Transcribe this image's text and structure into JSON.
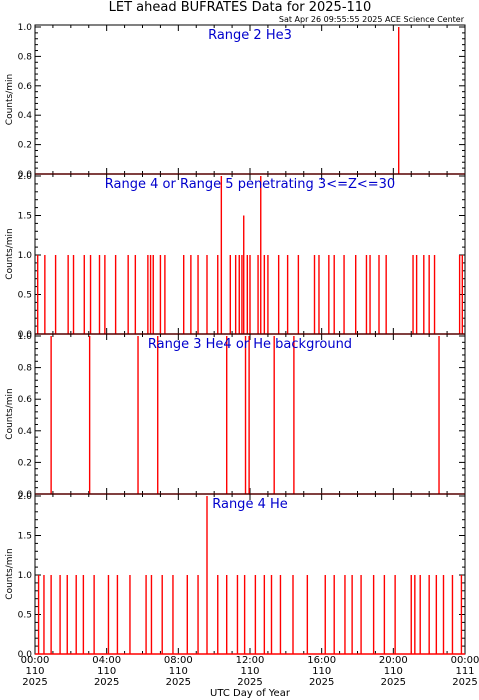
{
  "header": {
    "title": "LET ahead BUFRATES Data for 2025-110",
    "timestamp": "Sat Apr 26 09:55:55 2025 ACE Science Center"
  },
  "chart_data": {
    "type": "line",
    "xlabel": "UTC Day of Year",
    "x_ticks": [
      {
        "time": "00:00",
        "doy": "110",
        "year": "2025"
      },
      {
        "time": "04:00",
        "doy": "110",
        "year": "2025"
      },
      {
        "time": "08:00",
        "doy": "110",
        "year": "2025"
      },
      {
        "time": "12:00",
        "doy": "110",
        "year": "2025"
      },
      {
        "time": "16:00",
        "doy": "110",
        "year": "2025"
      },
      {
        "time": "20:00",
        "doy": "110",
        "year": "2025"
      },
      {
        "time": "00:00",
        "doy": "111",
        "year": "2025"
      }
    ],
    "xlim_hours": [
      0,
      24
    ],
    "colors": {
      "line": "#ff0000",
      "label": "#0000cc",
      "axis": "#000000"
    },
    "panels": [
      {
        "label": "Range 2 He3",
        "ylabel": "Counts/min",
        "ylim": [
          0,
          1.0
        ],
        "yticks": [
          "0.0",
          "0.2",
          "0.4",
          "0.6",
          "0.8",
          "1.0"
        ],
        "spikes": [
          {
            "t": 20.3,
            "v": 1
          }
        ]
      },
      {
        "label": "Range 4 or Range 5 penetrating 3<=Z<=30",
        "ylabel": "Counts/min",
        "ylim": [
          0,
          2.0
        ],
        "yticks": [
          "0.0",
          "0.5",
          "1.0",
          "1.5",
          "2.0"
        ],
        "spikes": [
          {
            "t": 0.15,
            "v": 1
          },
          {
            "t": 0.55,
            "v": 1
          },
          {
            "t": 1.15,
            "v": 1
          },
          {
            "t": 1.85,
            "v": 1
          },
          {
            "t": 2.15,
            "v": 1
          },
          {
            "t": 2.75,
            "v": 1
          },
          {
            "t": 3.1,
            "v": 1
          },
          {
            "t": 3.6,
            "v": 1
          },
          {
            "t": 3.9,
            "v": 1
          },
          {
            "t": 4.5,
            "v": 1
          },
          {
            "t": 5.2,
            "v": 1
          },
          {
            "t": 5.6,
            "v": 1
          },
          {
            "t": 6.3,
            "v": 1
          },
          {
            "t": 6.45,
            "v": 1
          },
          {
            "t": 6.6,
            "v": 1
          },
          {
            "t": 7.0,
            "v": 1
          },
          {
            "t": 7.25,
            "v": 1
          },
          {
            "t": 8.3,
            "v": 1
          },
          {
            "t": 8.7,
            "v": 1
          },
          {
            "t": 9.1,
            "v": 1
          },
          {
            "t": 9.6,
            "v": 1
          },
          {
            "t": 10.2,
            "v": 1
          },
          {
            "t": 10.4,
            "v": 2
          },
          {
            "t": 10.9,
            "v": 1
          },
          {
            "t": 11.2,
            "v": 1
          },
          {
            "t": 11.4,
            "v": 1
          },
          {
            "t": 11.55,
            "v": 1
          },
          {
            "t": 11.65,
            "v": 1.5
          },
          {
            "t": 11.85,
            "v": 1
          },
          {
            "t": 12.0,
            "v": 1
          },
          {
            "t": 12.45,
            "v": 1
          },
          {
            "t": 12.6,
            "v": 2
          },
          {
            "t": 12.8,
            "v": 1
          },
          {
            "t": 13.0,
            "v": 1
          },
          {
            "t": 13.6,
            "v": 1
          },
          {
            "t": 14.1,
            "v": 1
          },
          {
            "t": 14.7,
            "v": 1
          },
          {
            "t": 15.6,
            "v": 1
          },
          {
            "t": 15.85,
            "v": 1
          },
          {
            "t": 16.4,
            "v": 1
          },
          {
            "t": 16.7,
            "v": 1
          },
          {
            "t": 17.25,
            "v": 1
          },
          {
            "t": 17.9,
            "v": 1
          },
          {
            "t": 18.5,
            "v": 1
          },
          {
            "t": 18.7,
            "v": 1
          },
          {
            "t": 19.2,
            "v": 1
          },
          {
            "t": 19.6,
            "v": 1
          },
          {
            "t": 21.1,
            "v": 1
          },
          {
            "t": 21.3,
            "v": 1
          },
          {
            "t": 21.7,
            "v": 1
          },
          {
            "t": 22.0,
            "v": 1
          },
          {
            "t": 22.3,
            "v": 1
          },
          {
            "t": 23.7,
            "v": 1
          },
          {
            "t": 23.85,
            "v": 1
          }
        ]
      },
      {
        "label": "Range 3 He4 or He background",
        "ylabel": "Counts/min",
        "ylim": [
          0,
          1.0
        ],
        "yticks": [
          "0.0",
          "0.2",
          "0.4",
          "0.6",
          "0.8",
          "1.0"
        ],
        "spikes": [
          {
            "t": 0.9,
            "v": 1
          },
          {
            "t": 3.05,
            "v": 1
          },
          {
            "t": 5.75,
            "v": 1
          },
          {
            "t": 6.85,
            "v": 1
          },
          {
            "t": 10.7,
            "v": 1
          },
          {
            "t": 11.75,
            "v": 1
          },
          {
            "t": 11.95,
            "v": 1
          },
          {
            "t": 13.35,
            "v": 1
          },
          {
            "t": 14.45,
            "v": 1
          },
          {
            "t": 22.55,
            "v": 1
          }
        ]
      },
      {
        "label": "Range 4 He",
        "ylabel": "Counts/min",
        "ylim": [
          0,
          2.0
        ],
        "yticks": [
          "0.0",
          "0.5",
          "1.0",
          "1.5",
          "2.0"
        ],
        "spikes": [
          {
            "t": 0.2,
            "v": 1
          },
          {
            "t": 0.5,
            "v": 1
          },
          {
            "t": 0.9,
            "v": 1
          },
          {
            "t": 1.4,
            "v": 1
          },
          {
            "t": 1.8,
            "v": 1
          },
          {
            "t": 2.3,
            "v": 1
          },
          {
            "t": 2.7,
            "v": 1
          },
          {
            "t": 3.3,
            "v": 1
          },
          {
            "t": 4.1,
            "v": 1
          },
          {
            "t": 4.6,
            "v": 1
          },
          {
            "t": 5.3,
            "v": 1
          },
          {
            "t": 6.2,
            "v": 1
          },
          {
            "t": 6.5,
            "v": 1
          },
          {
            "t": 7.1,
            "v": 1
          },
          {
            "t": 7.7,
            "v": 1
          },
          {
            "t": 8.5,
            "v": 1
          },
          {
            "t": 9.1,
            "v": 1
          },
          {
            "t": 9.6,
            "v": 2
          },
          {
            "t": 10.2,
            "v": 1
          },
          {
            "t": 10.7,
            "v": 1
          },
          {
            "t": 11.3,
            "v": 1
          },
          {
            "t": 11.7,
            "v": 1
          },
          {
            "t": 12.3,
            "v": 1
          },
          {
            "t": 12.8,
            "v": 1
          },
          {
            "t": 13.2,
            "v": 1
          },
          {
            "t": 13.7,
            "v": 1
          },
          {
            "t": 14.4,
            "v": 1
          },
          {
            "t": 15.2,
            "v": 1
          },
          {
            "t": 16.2,
            "v": 1
          },
          {
            "t": 16.7,
            "v": 1
          },
          {
            "t": 17.3,
            "v": 1
          },
          {
            "t": 17.7,
            "v": 1
          },
          {
            "t": 18.2,
            "v": 1
          },
          {
            "t": 18.9,
            "v": 1
          },
          {
            "t": 19.5,
            "v": 1
          },
          {
            "t": 20.1,
            "v": 1
          },
          {
            "t": 21.0,
            "v": 1
          },
          {
            "t": 21.2,
            "v": 1
          },
          {
            "t": 21.5,
            "v": 1
          },
          {
            "t": 22.0,
            "v": 1
          },
          {
            "t": 22.4,
            "v": 1
          },
          {
            "t": 22.8,
            "v": 1
          },
          {
            "t": 23.3,
            "v": 1
          },
          {
            "t": 23.8,
            "v": 1
          }
        ]
      }
    ]
  }
}
